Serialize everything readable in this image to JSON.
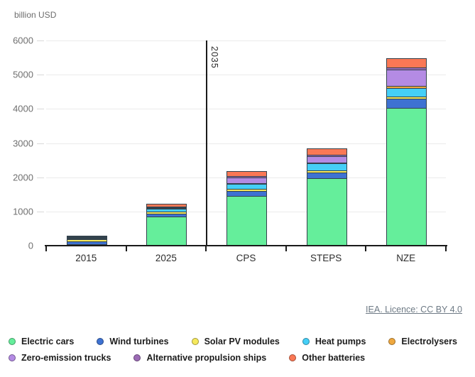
{
  "chart": {
    "unit_label": "billion USD",
    "annotation_2035": "2035",
    "source_link": "IEA. Licence: CC BY 4.0"
  },
  "chart_data": {
    "type": "bar",
    "stacked": true,
    "title": "",
    "ylabel": "billion USD",
    "xlabel": "",
    "ylim": [
      0,
      6000
    ],
    "yticks": [
      0,
      1000,
      2000,
      3000,
      4000,
      5000,
      6000
    ],
    "categories": [
      "2015",
      "2025",
      "CPS",
      "STEPS",
      "NZE"
    ],
    "annotation": {
      "text": "2035",
      "position": "vertical line between 2025 and CPS"
    },
    "legend_position": "bottom",
    "grid": true,
    "series": [
      {
        "name": "Electric cars",
        "color": "#65ee9b",
        "values": [
          10,
          840,
          1430,
          1960,
          4000
        ]
      },
      {
        "name": "Wind turbines",
        "color": "#3e72d2",
        "values": [
          90,
          75,
          150,
          160,
          270
        ]
      },
      {
        "name": "Solar PV modules",
        "color": "#f6e95c",
        "values": [
          60,
          55,
          55,
          55,
          70
        ]
      },
      {
        "name": "Heat pumps",
        "color": "#45cff7",
        "values": [
          25,
          85,
          150,
          210,
          250
        ]
      },
      {
        "name": "Electrolysers",
        "color": "#efa83f",
        "values": [
          2,
          10,
          15,
          25,
          50
        ]
      },
      {
        "name": "Zero-emission trucks",
        "color": "#b48be4",
        "values": [
          2,
          10,
          170,
          190,
          480
        ]
      },
      {
        "name": "Alternative propulsion ships",
        "color": "#9c6bb5",
        "values": [
          3,
          5,
          35,
          40,
          65
        ]
      },
      {
        "name": "Other batteries",
        "color": "#fa7855",
        "values": [
          15,
          85,
          150,
          190,
          275
        ]
      }
    ]
  }
}
